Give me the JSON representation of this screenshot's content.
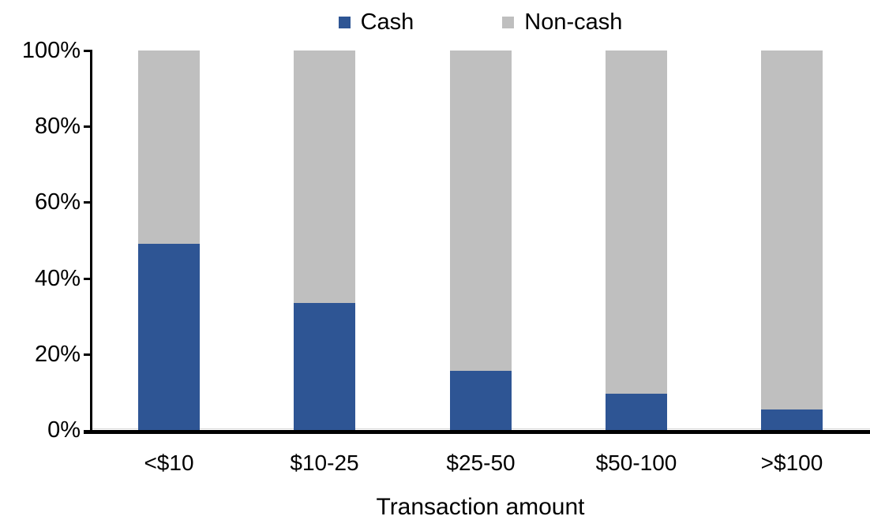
{
  "chart_data": {
    "type": "bar",
    "stacked": true,
    "stacking": "percent",
    "title": "",
    "xlabel": "Transaction amount",
    "ylabel": "",
    "categories": [
      "<$10",
      "$10-25",
      "$25-50",
      "$50-100",
      ">$100"
    ],
    "series": [
      {
        "name": "Cash",
        "color": "#2E5594",
        "values": [
          49,
          33.5,
          15.5,
          9.5,
          5.5
        ]
      },
      {
        "name": "Non-cash",
        "color": "#BFBFBF",
        "values": [
          51,
          66.5,
          84.5,
          90.5,
          94.5
        ]
      }
    ],
    "ylim": [
      0,
      100
    ],
    "yticks": [
      0,
      20,
      40,
      60,
      80,
      100
    ],
    "ytick_labels": [
      "0%",
      "20%",
      "40%",
      "60%",
      "80%",
      "100%"
    ],
    "legend_position": "top-center",
    "grid": false
  },
  "colors": {
    "axis": "#000000",
    "zero_line": "#D9D9D9",
    "background": "#FFFFFF",
    "text": "#000000"
  }
}
